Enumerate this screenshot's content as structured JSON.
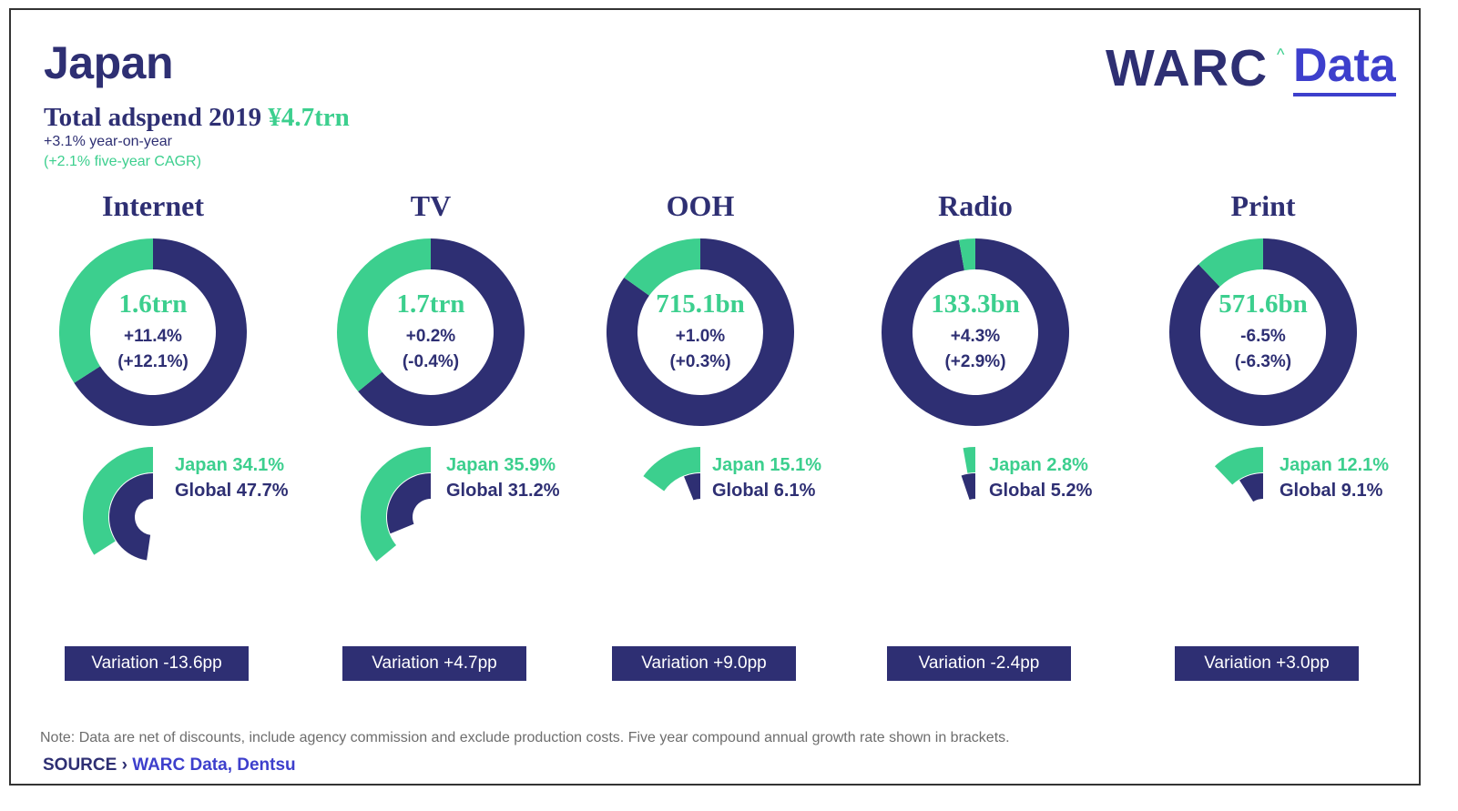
{
  "header": {
    "country": "Japan",
    "total_label": "Total adspend 2019",
    "total_value": "¥4.7trn",
    "yoy": "+3.1% year-on-year",
    "cagr": "(+2.1% five-year CAGR)"
  },
  "logo": {
    "warc": "WARC",
    "caret": "^",
    "data": "Data"
  },
  "colors": {
    "navy": "#2e2f73",
    "green": "#3ccf8e",
    "blue": "#3d3fcc"
  },
  "chart_data": {
    "type": "pie",
    "title": "Japan",
    "subtitle": "Total adspend 2019 ¥4.7trn",
    "series": [
      {
        "name": "Internet",
        "spend": "1.6trn",
        "growth": "+11.4%",
        "cagr": "(+12.1%)",
        "japan_share": 34.1,
        "global_share": 47.7,
        "japan_label": "Japan 34.1%",
        "global_label": "Global 47.7%",
        "variation": "Variation -13.6pp"
      },
      {
        "name": "TV",
        "spend": "1.7trn",
        "growth": "+0.2%",
        "cagr": "(-0.4%)",
        "japan_share": 35.9,
        "global_share": 31.2,
        "japan_label": "Japan 35.9%",
        "global_label": "Global 31.2%",
        "variation": "Variation +4.7pp"
      },
      {
        "name": "OOH",
        "spend": "715.1bn",
        "growth": "+1.0%",
        "cagr": "(+0.3%)",
        "japan_share": 15.1,
        "global_share": 6.1,
        "japan_label": "Japan 15.1%",
        "global_label": "Global 6.1%",
        "variation": "Variation +9.0pp"
      },
      {
        "name": "Radio",
        "spend": "133.3bn",
        "growth": "+4.3%",
        "cagr": "(+2.9%)",
        "japan_share": 2.8,
        "global_share": 5.2,
        "japan_label": "Japan 2.8%",
        "global_label": "Global 5.2%",
        "variation": "Variation -2.4pp"
      },
      {
        "name": "Print",
        "spend": "571.6bn",
        "growth": "-6.5%",
        "cagr": "(-6.3%)",
        "japan_share": 12.1,
        "global_share": 9.1,
        "japan_label": "Japan 12.1%",
        "global_label": "Global 9.1%",
        "variation": "Variation +3.0pp"
      }
    ]
  },
  "footer": {
    "note": "Note: Data are net of discounts, include agency commission and exclude production costs. Five year compound annual growth rate shown in brackets.",
    "source_label": "SOURCE ›",
    "source_value": "WARC Data, Dentsu"
  }
}
